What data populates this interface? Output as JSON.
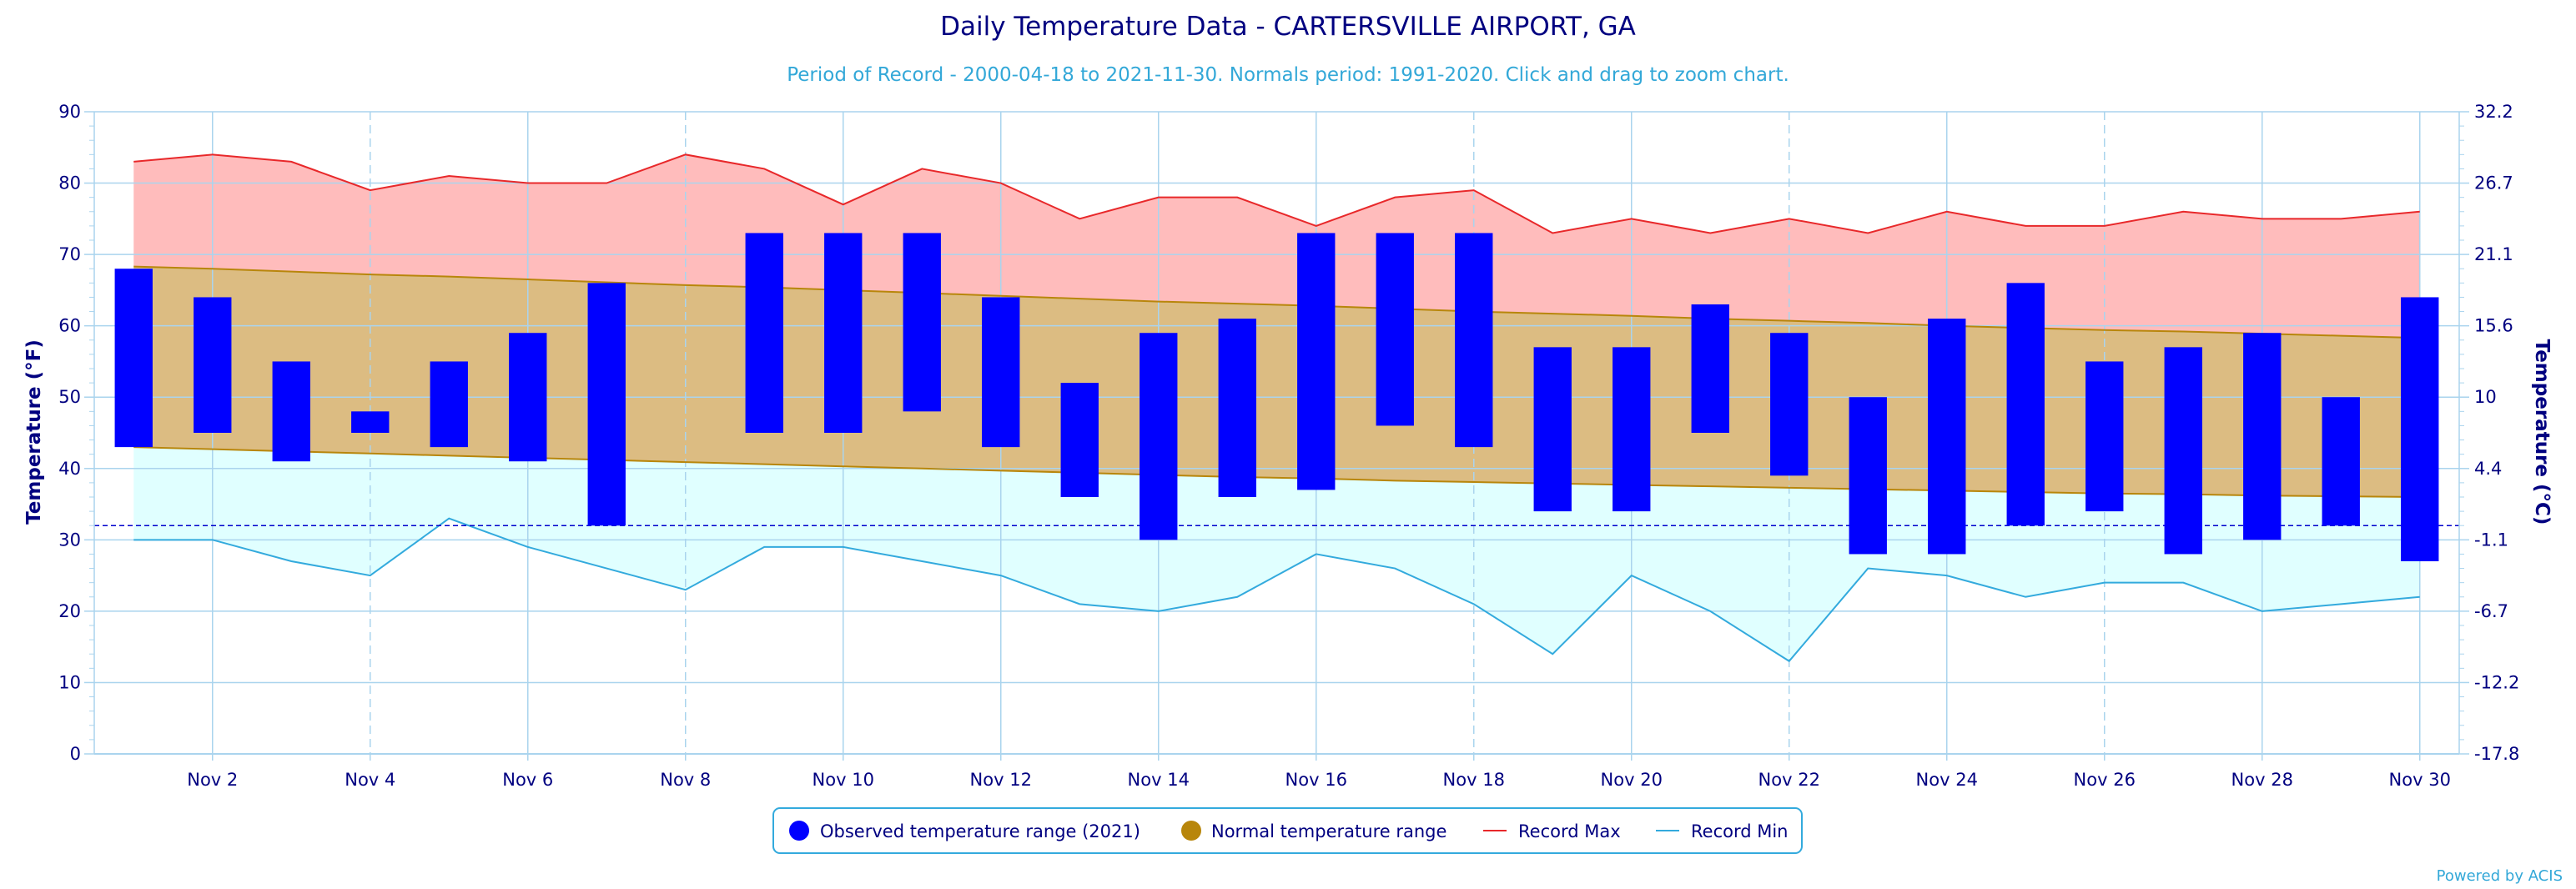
{
  "title": "Daily Temperature Data - CARTERSVILLE AIRPORT, GA",
  "subtitle": "Period of Record - 2000-04-18 to 2021-11-30. Normals period: 1991-2020. Click and drag to zoom chart.",
  "credit": "Powered by ACIS",
  "colors": {
    "observed": "#0000ff",
    "normal_fill": "#dcbc82",
    "normal_line": "#b8860b",
    "record_max_fill": "#ffbcbc",
    "record_max_line": "#e8282a",
    "record_min_fill": "#e0ffff",
    "record_min_line": "#33aadd",
    "grid": "#aad4ee",
    "axis_text": "#000080"
  },
  "chart_data": {
    "type": "bar",
    "title": "Daily Temperature Data - CARTERSVILLE AIRPORT, GA",
    "xlabel": "",
    "ylabel": "Temperature (°F)",
    "ylabel_right": "Temperature (°C)",
    "ylim": [
      0,
      90
    ],
    "y_ticks": [
      0,
      10,
      20,
      30,
      40,
      50,
      60,
      70,
      80,
      90
    ],
    "y_right_ticks": [
      "-17.8",
      "-12.2",
      "-6.7",
      "-1.1",
      "4.4",
      "10",
      "15.6",
      "21.1",
      "26.7",
      "32.2"
    ],
    "freezing_line": 32,
    "days": [
      1,
      2,
      3,
      4,
      5,
      6,
      7,
      8,
      9,
      10,
      11,
      12,
      13,
      14,
      15,
      16,
      17,
      18,
      19,
      20,
      21,
      22,
      23,
      24,
      25,
      26,
      27,
      28,
      29,
      30
    ],
    "x_tick_labels": [
      "Nov 2",
      "Nov 4",
      "Nov 6",
      "Nov 8",
      "Nov 10",
      "Nov 12",
      "Nov 14",
      "Nov 16",
      "Nov 18",
      "Nov 20",
      "Nov 22",
      "Nov 24",
      "Nov 26",
      "Nov 28",
      "Nov 30"
    ],
    "x_tick_days": [
      2,
      4,
      6,
      8,
      10,
      12,
      14,
      16,
      18,
      20,
      22,
      24,
      26,
      28,
      30
    ],
    "grid": true,
    "legend_position": "bottom-center",
    "series": [
      {
        "name": "Observed temperature range (2021)",
        "type": "range-bar",
        "low": [
          43,
          45,
          41,
          45,
          43,
          41,
          32,
          null,
          45,
          45,
          48,
          43,
          36,
          30,
          36,
          37,
          46,
          43,
          34,
          34,
          45,
          39,
          28,
          28,
          32,
          34,
          28,
          30,
          32,
          27
        ],
        "high": [
          68,
          64,
          55,
          48,
          55,
          59,
          66,
          null,
          73,
          73,
          73,
          64,
          52,
          59,
          61,
          73,
          73,
          73,
          57,
          57,
          63,
          59,
          50,
          61,
          66,
          55,
          57,
          59,
          50,
          64
        ]
      },
      {
        "name": "Normal temperature range",
        "type": "range-area",
        "high": [
          68.3,
          68.0,
          67.6,
          67.2,
          66.9,
          66.5,
          66.1,
          65.7,
          65.4,
          65.0,
          64.6,
          64.2,
          63.8,
          63.4,
          63.1,
          62.8,
          62.4,
          62.0,
          61.7,
          61.4,
          61.0,
          60.7,
          60.4,
          60.0,
          59.7,
          59.4,
          59.2,
          58.9,
          58.6,
          58.3
        ],
        "low": [
          43.0,
          42.7,
          42.4,
          42.1,
          41.8,
          41.5,
          41.2,
          40.9,
          40.6,
          40.3,
          40.0,
          39.7,
          39.4,
          39.1,
          38.8,
          38.6,
          38.3,
          38.1,
          37.9,
          37.7,
          37.5,
          37.3,
          37.1,
          36.9,
          36.7,
          36.5,
          36.4,
          36.2,
          36.1,
          36.0
        ]
      },
      {
        "name": "Record Max",
        "type": "line",
        "values": [
          83,
          84,
          83,
          79,
          81,
          80,
          80,
          84,
          82,
          77,
          82,
          80,
          75,
          78,
          78,
          74,
          78,
          79,
          73,
          75,
          73,
          75,
          73,
          76,
          74,
          74,
          76,
          75,
          75,
          76
        ]
      },
      {
        "name": "Record Min",
        "type": "line",
        "values": [
          30,
          30,
          27,
          25,
          33,
          29,
          26,
          23,
          29,
          29,
          27,
          25,
          21,
          20,
          22,
          28,
          26,
          21,
          14,
          25,
          20,
          13,
          26,
          25,
          22,
          24,
          24,
          20,
          21,
          22
        ]
      }
    ]
  }
}
